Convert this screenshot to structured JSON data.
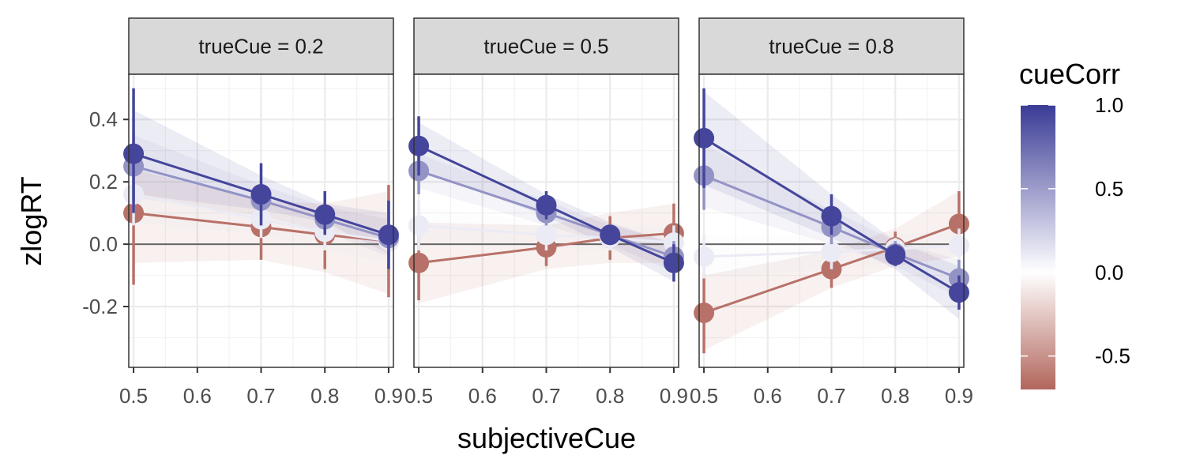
{
  "chart_data": {
    "type": "line",
    "xlabel": "subjectiveCue",
    "ylabel": "zlogRT",
    "x_ticks": [
      0.5,
      0.6,
      0.7,
      0.8,
      0.9
    ],
    "x_tick_labels": [
      "0.5",
      "0.6",
      "0.7",
      "0.8",
      "0.9"
    ],
    "y_ticks": [
      -0.2,
      0.0,
      0.2,
      0.4
    ],
    "y_tick_labels": [
      "-0.2",
      "0.0",
      "0.2",
      "0.4"
    ],
    "xlim": [
      0.4925,
      0.9075
    ],
    "ylim": [
      -0.395,
      0.545
    ],
    "grid": true,
    "reference_line": 0,
    "legend": {
      "title": "cueCorr",
      "position": "right",
      "type": "colorbar",
      "range": [
        -0.7,
        1.0
      ],
      "labels": [
        "1.0",
        "0.5",
        "0.0",
        "-0.5"
      ],
      "label_values": [
        1.0,
        0.5,
        0.0,
        -0.5
      ],
      "colors": {
        "low": "#b2665c",
        "mid": "#ffffff",
        "high": "#3a3b96"
      }
    },
    "x": [
      0.5,
      0.7,
      0.8,
      0.9
    ],
    "panels": [
      {
        "strip": "trueCue = 0.2",
        "series": [
          {
            "cueCorr": 0.95,
            "values": [
              0.29,
              0.16,
              0.095,
              0.03
            ],
            "lower": [
              0.1,
              0.06,
              0.03,
              -0.08
            ],
            "upper": [
              0.5,
              0.26,
              0.17,
              0.14
            ],
            "band_lower": [
              0.16,
              0.11,
              0.07,
              -0.03
            ],
            "band_upper": [
              0.43,
              0.22,
              0.13,
              0.1
            ]
          },
          {
            "cueCorr": 0.55,
            "values": [
              0.25,
              0.14,
              0.08,
              0.02
            ],
            "lower": [
              0.14,
              0.08,
              0.03,
              -0.05
            ],
            "upper": [
              0.36,
              0.2,
              0.13,
              0.09
            ],
            "band_lower": [
              0.15,
              0.09,
              0.04,
              -0.04
            ],
            "band_upper": [
              0.35,
              0.19,
              0.12,
              0.08
            ]
          },
          {
            "cueCorr": 0.1,
            "values": [
              0.16,
              0.08,
              0.04,
              0.01
            ],
            "lower": [
              0.06,
              0.02,
              -0.02,
              -0.06
            ],
            "upper": [
              0.26,
              0.14,
              0.1,
              0.08
            ],
            "band_lower": [
              0.07,
              0.03,
              -0.02,
              -0.06
            ],
            "band_upper": [
              0.25,
              0.13,
              0.1,
              0.08
            ]
          },
          {
            "cueCorr": -0.65,
            "values": [
              0.1,
              0.055,
              0.03,
              0.01
            ],
            "lower": [
              -0.13,
              -0.05,
              -0.08,
              -0.17
            ],
            "upper": [
              0.33,
              0.16,
              0.14,
              0.19
            ],
            "band_lower": [
              -0.06,
              -0.05,
              -0.09,
              -0.16
            ],
            "band_upper": [
              0.24,
              0.14,
              0.13,
              0.17
            ]
          }
        ]
      },
      {
        "strip": "trueCue = 0.5",
        "series": [
          {
            "cueCorr": 0.95,
            "values": [
              0.315,
              0.125,
              0.03,
              -0.06
            ],
            "lower": [
              0.22,
              0.08,
              0.0,
              -0.12
            ],
            "upper": [
              0.41,
              0.17,
              0.06,
              0.0
            ],
            "band_lower": [
              0.24,
              0.09,
              -0.01,
              -0.12
            ],
            "band_upper": [
              0.39,
              0.16,
              0.07,
              0.0
            ]
          },
          {
            "cueCorr": 0.55,
            "values": [
              0.235,
              0.1,
              0.03,
              -0.04
            ],
            "lower": [
              0.16,
              0.06,
              0.0,
              -0.09
            ],
            "upper": [
              0.31,
              0.14,
              0.06,
              0.01
            ],
            "band_lower": [
              0.18,
              0.06,
              0.0,
              -0.09
            ],
            "band_upper": [
              0.29,
              0.14,
              0.06,
              0.01
            ]
          },
          {
            "cueCorr": 0.1,
            "values": [
              0.06,
              0.03,
              0.02,
              0.005
            ],
            "lower": [
              -0.02,
              -0.02,
              -0.02,
              -0.05
            ],
            "upper": [
              0.14,
              0.08,
              0.06,
              0.06
            ],
            "band_lower": [
              0.0,
              -0.01,
              -0.02,
              -0.04
            ],
            "band_upper": [
              0.12,
              0.07,
              0.06,
              0.05
            ]
          },
          {
            "cueCorr": -0.65,
            "values": [
              -0.06,
              -0.01,
              0.02,
              0.035
            ],
            "lower": [
              -0.18,
              -0.07,
              -0.05,
              -0.06
            ],
            "upper": [
              0.06,
              0.05,
              0.09,
              0.13
            ],
            "band_lower": [
              -0.19,
              -0.08,
              -0.06,
              -0.06
            ],
            "band_upper": [
              0.07,
              0.06,
              0.1,
              0.13
            ]
          }
        ]
      },
      {
        "strip": "trueCue = 0.8",
        "series": [
          {
            "cueCorr": 0.95,
            "values": [
              0.34,
              0.09,
              -0.035,
              -0.155
            ],
            "lower": [
              0.18,
              0.03,
              -0.07,
              -0.21
            ],
            "upper": [
              0.5,
              0.16,
              0.0,
              -0.1
            ],
            "band_lower": [
              0.19,
              0.02,
              -0.08,
              -0.24
            ],
            "band_upper": [
              0.49,
              0.16,
              0.01,
              -0.07
            ]
          },
          {
            "cueCorr": 0.55,
            "values": [
              0.22,
              0.055,
              -0.03,
              -0.11
            ],
            "lower": [
              0.11,
              0.0,
              -0.07,
              -0.17
            ],
            "upper": [
              0.33,
              0.11,
              0.01,
              -0.05
            ],
            "band_lower": [
              0.12,
              0.0,
              -0.07,
              -0.17
            ],
            "band_upper": [
              0.32,
              0.11,
              0.01,
              -0.05
            ]
          },
          {
            "cueCorr": 0.1,
            "values": [
              -0.04,
              -0.025,
              -0.015,
              -0.005
            ],
            "lower": [
              -0.11,
              -0.08,
              -0.05,
              -0.06
            ],
            "upper": [
              0.03,
              0.03,
              0.02,
              0.05
            ],
            "band_lower": [
              -0.11,
              -0.08,
              -0.06,
              -0.06
            ],
            "band_upper": [
              0.03,
              0.03,
              0.03,
              0.05
            ]
          },
          {
            "cueCorr": -0.65,
            "values": [
              -0.22,
              -0.08,
              -0.01,
              0.065
            ],
            "lower": [
              -0.35,
              -0.14,
              -0.06,
              -0.04
            ],
            "upper": [
              -0.09,
              -0.02,
              0.04,
              0.17
            ],
            "band_lower": [
              -0.34,
              -0.14,
              -0.07,
              -0.04
            ],
            "band_upper": [
              -0.1,
              -0.02,
              0.05,
              0.17
            ]
          }
        ]
      }
    ]
  }
}
